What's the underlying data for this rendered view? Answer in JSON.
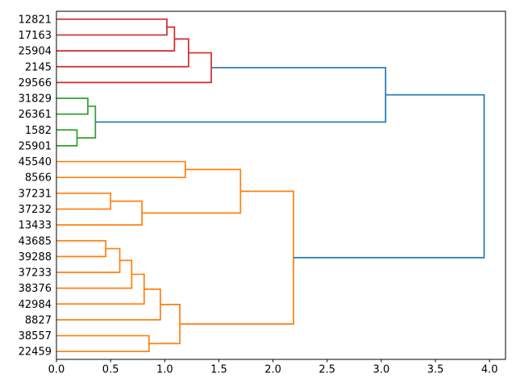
{
  "figure": {
    "background": "#ffffff"
  },
  "chart_data": {
    "type": "dendrogram",
    "orientation": "right",
    "title": "",
    "xlabel": "",
    "ylabel": "",
    "grid": false,
    "legend": null,
    "xlim": [
      0,
      4.1475
    ],
    "xticks": [
      {
        "value": 0.0,
        "label": "0.0"
      },
      {
        "value": 0.5,
        "label": "0.5"
      },
      {
        "value": 1.0,
        "label": "1.0"
      },
      {
        "value": 1.5,
        "label": "1.5"
      },
      {
        "value": 2.0,
        "label": "2.0"
      },
      {
        "value": 2.5,
        "label": "2.5"
      },
      {
        "value": 3.0,
        "label": "3.0"
      },
      {
        "value": 3.5,
        "label": "3.5"
      },
      {
        "value": 4.0,
        "label": "4.0"
      }
    ],
    "leaves": [
      "12821",
      "17163",
      "25904",
      "2145",
      "29566",
      "31829",
      "26361",
      "1582",
      "25901",
      "45540",
      "8566",
      "37231",
      "37232",
      "13433",
      "43685",
      "39288",
      "37233",
      "38376",
      "42984",
      "8827",
      "38557",
      "22459"
    ],
    "links": [
      {
        "id": "r1",
        "children": [
          "12821",
          "17163"
        ],
        "height": 1.02,
        "color": "red"
      },
      {
        "id": "r2",
        "children": [
          "r1",
          "25904"
        ],
        "height": 1.09,
        "color": "red"
      },
      {
        "id": "r3",
        "children": [
          "r2",
          "2145"
        ],
        "height": 1.22,
        "color": "red"
      },
      {
        "id": "r4",
        "children": [
          "r3",
          "29566"
        ],
        "height": 1.43,
        "color": "red"
      },
      {
        "id": "g1",
        "children": [
          "31829",
          "26361"
        ],
        "height": 0.29,
        "color": "green"
      },
      {
        "id": "g2",
        "children": [
          "1582",
          "25901"
        ],
        "height": 0.19,
        "color": "green"
      },
      {
        "id": "g3",
        "children": [
          "g1",
          "g2"
        ],
        "height": 0.36,
        "color": "green"
      },
      {
        "id": "o1",
        "children": [
          "45540",
          "8566"
        ],
        "height": 1.19,
        "color": "orange"
      },
      {
        "id": "o2",
        "children": [
          "37231",
          "37232"
        ],
        "height": 0.5,
        "color": "orange"
      },
      {
        "id": "o3",
        "children": [
          "o2",
          "13433"
        ],
        "height": 0.79,
        "color": "orange"
      },
      {
        "id": "o4",
        "children": [
          "o1",
          "o3"
        ],
        "height": 1.7,
        "color": "orange"
      },
      {
        "id": "o5",
        "children": [
          "43685",
          "39288"
        ],
        "height": 0.455,
        "color": "orange"
      },
      {
        "id": "o6",
        "children": [
          "o5",
          "37233"
        ],
        "height": 0.585,
        "color": "orange"
      },
      {
        "id": "o7",
        "children": [
          "o6",
          "38376"
        ],
        "height": 0.695,
        "color": "orange"
      },
      {
        "id": "o8",
        "children": [
          "o7",
          "42984"
        ],
        "height": 0.81,
        "color": "orange"
      },
      {
        "id": "o9",
        "children": [
          "o8",
          "8827"
        ],
        "height": 0.96,
        "color": "orange"
      },
      {
        "id": "o10",
        "children": [
          "38557",
          "22459"
        ],
        "height": 0.855,
        "color": "orange"
      },
      {
        "id": "o11",
        "children": [
          "o9",
          "o10"
        ],
        "height": 1.14,
        "color": "orange"
      },
      {
        "id": "o12",
        "children": [
          "o4",
          "o11"
        ],
        "height": 2.19,
        "color": "orange"
      },
      {
        "id": "b1",
        "children": [
          "r4",
          "g3"
        ],
        "height": 3.04,
        "color": "blue"
      },
      {
        "id": "b2",
        "children": [
          "b1",
          "o12"
        ],
        "height": 3.95,
        "color": "blue"
      }
    ],
    "colors": {
      "red": "#d62728",
      "green": "#2ca02c",
      "orange": "#ff7f0e",
      "blue": "#1f77b4",
      "axis": "#000000",
      "text": "#000000"
    }
  }
}
